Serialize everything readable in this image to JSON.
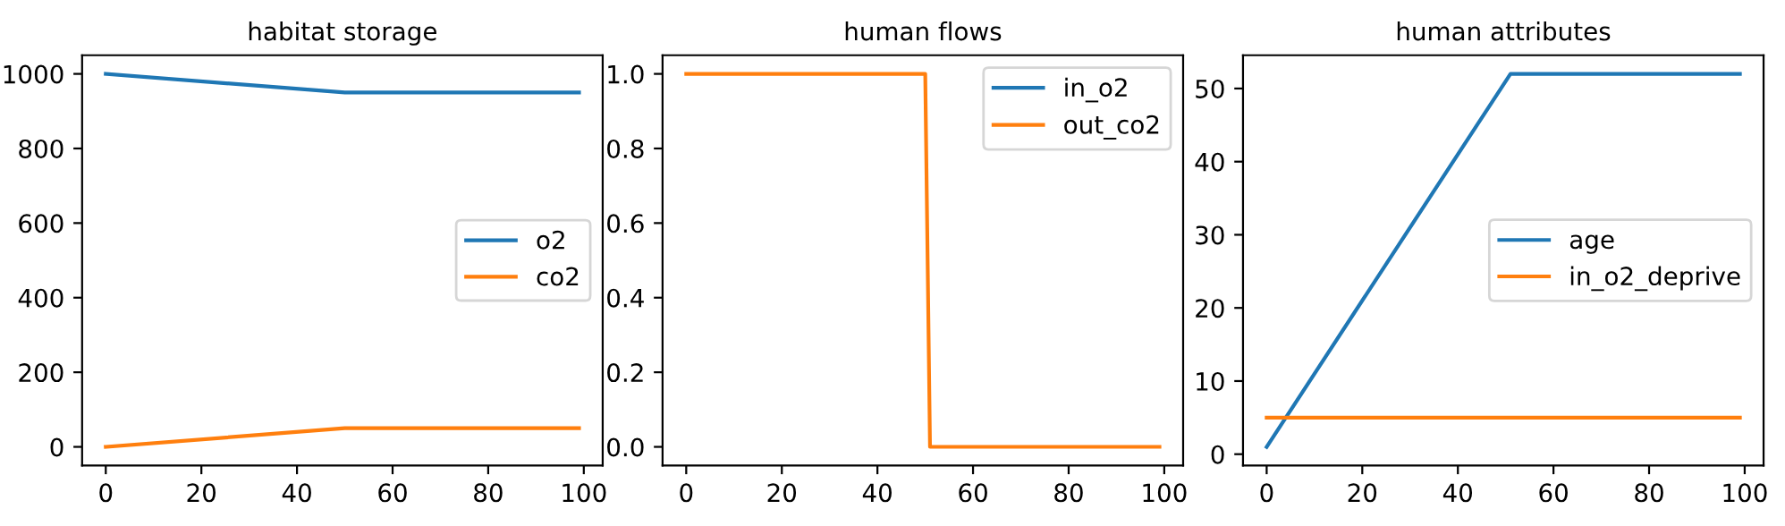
{
  "chart_data": [
    {
      "type": "line",
      "title": "habitat storage",
      "xlim": [
        -4.95,
        103.95
      ],
      "xticks": [
        0,
        20,
        40,
        60,
        80,
        100
      ],
      "ylim": [
        -50,
        1050
      ],
      "yticks": [
        0,
        200,
        400,
        600,
        800,
        1000
      ],
      "legend": "right",
      "series": [
        {
          "name": "o2",
          "color": "#1f77b4",
          "x": [
            0,
            50,
            99
          ],
          "values": [
            1000,
            950,
            950
          ]
        },
        {
          "name": "co2",
          "color": "#ff7f0e",
          "x": [
            0,
            50,
            99
          ],
          "values": [
            0,
            50,
            50
          ]
        }
      ]
    },
    {
      "type": "line",
      "title": "human flows",
      "xlim": [
        -4.95,
        103.95
      ],
      "xticks": [
        0,
        20,
        40,
        60,
        80,
        100
      ],
      "ylim": [
        -0.05,
        1.05
      ],
      "yticks": [
        {
          "value": 0,
          "label": "0.0"
        },
        0.2,
        0.4,
        0.6,
        0.8,
        {
          "value": 1,
          "label": "1.0"
        }
      ],
      "legend": "top right",
      "series": [
        {
          "name": "in_o2",
          "color": "#1f77b4"
        },
        {
          "name": "out_co2",
          "color": "#ff7f0e",
          "x": [
            0,
            50,
            51,
            99
          ],
          "values": [
            1,
            1,
            0,
            0
          ]
        }
      ]
    },
    {
      "type": "line",
      "title": "human attributes",
      "xlim": [
        -4.95,
        103.95
      ],
      "xticks": [
        0,
        20,
        40,
        60,
        80,
        100
      ],
      "ylim": [
        -1.55,
        54.55
      ],
      "yticks": [
        0,
        10,
        20,
        30,
        40,
        50
      ],
      "legend": "right",
      "series": [
        {
          "name": "age",
          "color": "#1f77b4",
          "x": [
            0,
            51,
            99
          ],
          "values": [
            1,
            52,
            52
          ]
        },
        {
          "name": "in_o2_deprive",
          "color": "#ff7f0e",
          "x": [
            0,
            99
          ],
          "values": [
            5,
            5
          ]
        }
      ]
    }
  ]
}
